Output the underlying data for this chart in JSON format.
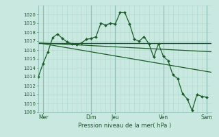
{
  "background_color": "#c8e8e0",
  "grid_color_minor": "#b0d8d0",
  "grid_color_major": "#90c0b8",
  "line_color": "#1a5c28",
  "xlabel": "Pression niveau de la mer( hPa )",
  "ylim": [
    1009,
    1021
  ],
  "ytick_min": 1009,
  "ytick_max": 1020,
  "xlim": [
    0,
    36
  ],
  "xtick_labels": [
    "Mer",
    "Dim",
    "Jeu",
    "Ven",
    "Sam"
  ],
  "xtick_positions": [
    1,
    11,
    16,
    26,
    35
  ],
  "vline_positions": [
    1,
    11,
    16,
    26,
    35
  ],
  "line1_x": [
    0,
    1,
    2,
    3,
    4,
    5,
    6,
    7,
    8,
    9,
    10,
    11,
    12,
    13,
    14,
    15,
    16,
    17,
    18,
    19,
    20,
    21,
    22,
    23,
    24,
    25,
    26,
    27,
    28,
    29,
    30,
    31,
    32,
    33,
    34,
    35
  ],
  "line1_y": [
    1013.0,
    1014.5,
    1015.8,
    1017.4,
    1017.8,
    1017.3,
    1016.9,
    1016.7,
    1016.6,
    1016.8,
    1017.2,
    1017.3,
    1017.5,
    1019.0,
    1018.8,
    1019.0,
    1018.9,
    1020.2,
    1020.2,
    1018.9,
    1017.2,
    1017.0,
    1017.5,
    1016.7,
    1015.2,
    1016.7,
    1015.3,
    1014.8,
    1013.2,
    1012.8,
    1011.1,
    1010.5,
    1009.2,
    1011.0,
    1010.8,
    1010.7
  ],
  "line2_x": [
    0,
    36
  ],
  "line2_y": [
    1016.8,
    1016.8
  ],
  "line3_x": [
    0,
    36
  ],
  "line3_y": [
    1016.8,
    1015.8
  ],
  "line4_x": [
    0,
    36
  ],
  "line4_y": [
    1016.8,
    1013.5
  ]
}
